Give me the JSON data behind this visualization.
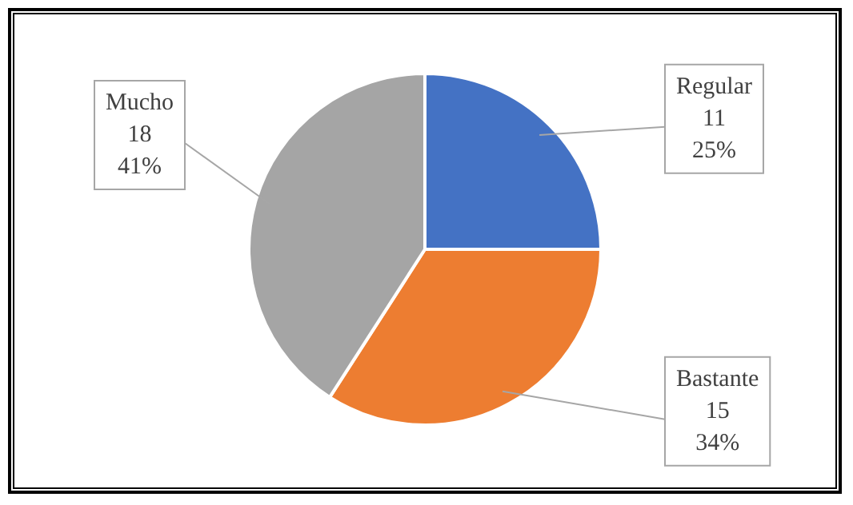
{
  "chart_data": {
    "type": "pie",
    "categories": [
      "Regular",
      "Bastante",
      "Mucho"
    ],
    "values": [
      11,
      15,
      18
    ],
    "colors": [
      "#4472c4",
      "#ed7d31",
      "#a5a5a5"
    ],
    "value_labels": [
      "11\n25%",
      "15\n34%",
      "18\n41%"
    ],
    "legend": false
  }
}
